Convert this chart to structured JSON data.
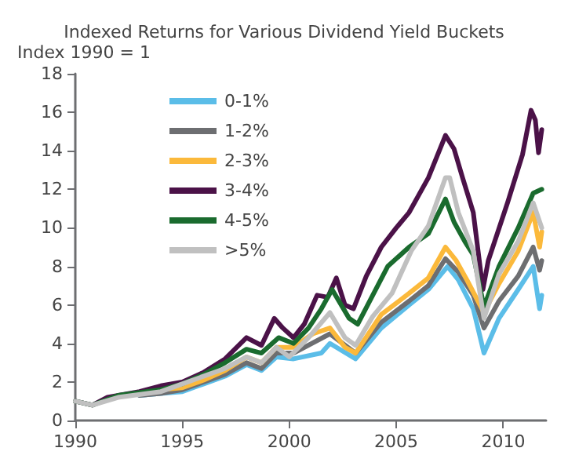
{
  "chart_data": {
    "type": "line",
    "title": "Indexed Returns for Various Dividend Yield Buckets",
    "ylabel": "Index 1990 = 1",
    "xlim": [
      1990,
      2012
    ],
    "xticks": [
      1990,
      1995,
      2000,
      2005,
      2010
    ],
    "ylim": [
      0,
      18
    ],
    "yticks": [
      0,
      2,
      4,
      6,
      8,
      10,
      12,
      14,
      16,
      18
    ],
    "grid": false,
    "legend": "top left",
    "marker": "none",
    "line_style": "solid",
    "series": [
      {
        "name": "0-1%",
        "color": "#5bbde8",
        "x": [
          1993,
          1994,
          1995,
          1996,
          1997,
          1998,
          1998.7,
          1999.4,
          2000.2,
          2001.5,
          2001.9,
          2003.1,
          2004.3,
          2005.6,
          2006.5,
          2007.4,
          2007.9,
          2008.6,
          2009.1,
          2009.8,
          2010.7,
          2011.4,
          2011.7,
          2011.8
        ],
        "values": [
          1.3,
          1.4,
          1.5,
          1.9,
          2.3,
          2.9,
          2.6,
          3.3,
          3.2,
          3.5,
          4.0,
          3.2,
          4.8,
          6.0,
          6.8,
          8.0,
          7.3,
          5.8,
          3.5,
          5.3,
          6.8,
          8.0,
          5.8,
          6.5
        ]
      },
      {
        "name": "1-2%",
        "color": "#6d6e71",
        "x": [
          1993,
          1994,
          1995,
          1996,
          1997,
          1998,
          1998.7,
          1999.4,
          2000.2,
          2001.9,
          2003.1,
          2004.3,
          2005.6,
          2006.5,
          2007.3,
          2007.9,
          2008.6,
          2009.1,
          2009.8,
          2010.7,
          2011.4,
          2011.7,
          2011.8
        ],
        "values": [
          1.3,
          1.4,
          1.6,
          2.0,
          2.4,
          3.0,
          2.7,
          3.5,
          3.5,
          4.5,
          3.5,
          5.1,
          6.2,
          7.0,
          8.4,
          7.7,
          6.5,
          4.8,
          6.2,
          7.5,
          9.0,
          7.8,
          8.3
        ]
      },
      {
        "name": "2-3%",
        "color": "#fbb93b",
        "x": [
          1993,
          1994,
          1995,
          1996,
          1997,
          1998,
          1998.7,
          1999.4,
          2000.2,
          2001.1,
          2001.9,
          2002.6,
          2003.1,
          2004.3,
          2005.6,
          2006.5,
          2007.3,
          2007.8,
          2008.3,
          2009.1,
          2009.8,
          2010.7,
          2011.4,
          2011.7,
          2011.8
        ],
        "values": [
          1.4,
          1.6,
          1.7,
          2.1,
          2.6,
          3.3,
          3.0,
          3.8,
          3.8,
          4.5,
          4.8,
          3.8,
          3.5,
          5.5,
          6.6,
          7.4,
          9.0,
          8.3,
          7.3,
          5.6,
          7.1,
          8.8,
          10.8,
          9.0,
          9.8
        ]
      },
      {
        "name": "3-4%",
        "color": "#4b1248",
        "x": [
          1990,
          1990.8,
          1991.5,
          1993,
          1994,
          1995,
          1996,
          1997,
          1998,
          1998.7,
          1999.3,
          1999.7,
          2000.2,
          2000.7,
          2001.3,
          2001.8,
          2002.2,
          2002.6,
          2003.0,
          2003.6,
          2004.3,
          2005.0,
          2005.6,
          2006.5,
          2007.3,
          2007.7,
          2008.1,
          2008.6,
          2009.05,
          2009.3,
          2010.2,
          2010.9,
          2011.3,
          2011.5,
          2011.65,
          2011.8
        ],
        "values": [
          1.0,
          0.8,
          1.2,
          1.5,
          1.8,
          2.0,
          2.5,
          3.2,
          4.3,
          3.9,
          5.3,
          4.8,
          4.3,
          5.0,
          6.5,
          6.4,
          7.4,
          6.0,
          5.8,
          7.5,
          9.0,
          10.0,
          10.8,
          12.6,
          14.8,
          14.1,
          12.6,
          10.8,
          6.8,
          8.3,
          11.3,
          13.8,
          16.1,
          15.6,
          13.9,
          15.1
        ]
      },
      {
        "name": "4-5%",
        "color": "#1a6b2e",
        "x": [
          1990,
          1990.8,
          1992,
          1994,
          1995,
          1996,
          1997,
          1998,
          1998.7,
          1999.5,
          2000.2,
          2000.9,
          2001.5,
          2002.0,
          2002.8,
          2003.2,
          2003.9,
          2004.6,
          2005.6,
          2006.5,
          2007.3,
          2007.7,
          2008.2,
          2008.6,
          2009.1,
          2009.8,
          2010.7,
          2011.4,
          2011.8
        ],
        "values": [
          1.0,
          0.8,
          1.3,
          1.6,
          1.9,
          2.4,
          3.0,
          3.7,
          3.5,
          4.3,
          4.0,
          4.8,
          5.8,
          6.8,
          5.3,
          5.0,
          6.5,
          8.0,
          9.0,
          9.7,
          11.5,
          10.3,
          9.3,
          8.6,
          5.9,
          8.0,
          10.0,
          11.8,
          12.0
        ]
      },
      {
        "name": ">5%",
        "color": "#c0c0c0",
        "x": [
          1990,
          1990.8,
          1992,
          1994,
          1995,
          1997,
          1998,
          1998.7,
          1999.4,
          2000.0,
          2000.9,
          2001.9,
          2002.6,
          2003.1,
          2003.9,
          2004.8,
          2005.7,
          2006.5,
          2007.3,
          2007.5,
          2007.9,
          2008.6,
          2009.1,
          2009.8,
          2010.7,
          2011.4,
          2011.8
        ],
        "values": [
          1.0,
          0.8,
          1.2,
          1.5,
          1.9,
          2.7,
          3.3,
          3.0,
          3.8,
          3.3,
          4.3,
          5.6,
          4.3,
          3.9,
          5.4,
          6.6,
          8.8,
          10.1,
          12.6,
          12.6,
          10.8,
          8.8,
          5.3,
          7.6,
          9.3,
          11.3,
          10.0
        ]
      }
    ]
  }
}
